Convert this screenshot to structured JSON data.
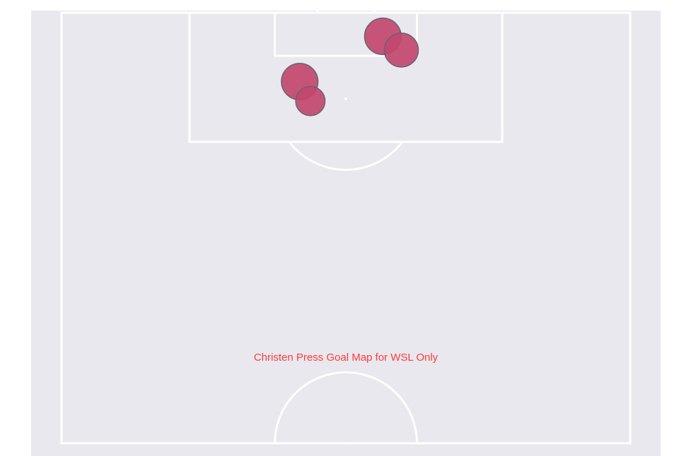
{
  "colors": {
    "pitch_background": "#e8e8ee",
    "pitch_lines": "#ffffff",
    "shot_fill": "#c2466f",
    "shot_edge": "#6b6470",
    "title": "#ff3b3b"
  },
  "chart_data": {
    "type": "scatter",
    "title": "Christen Press Goal Map for WSL Only",
    "subtitle": "",
    "xlabel": "",
    "ylabel": "",
    "pitch": "half-pitch, vertical, attacking upward",
    "grid": false,
    "legend": "none",
    "xlim": [
      0,
      80
    ],
    "ylim": [
      60,
      124
    ],
    "size_meaning": "shot xG",
    "points": [
      {
        "x": 45.2,
        "y": 116.7,
        "xg": 0.33
      },
      {
        "x": 47.8,
        "y": 114.8,
        "xg": 0.25
      },
      {
        "x": 33.5,
        "y": 110.4,
        "xg": 0.33
      },
      {
        "x": 35.0,
        "y": 107.7,
        "xg": 0.13
      }
    ]
  }
}
